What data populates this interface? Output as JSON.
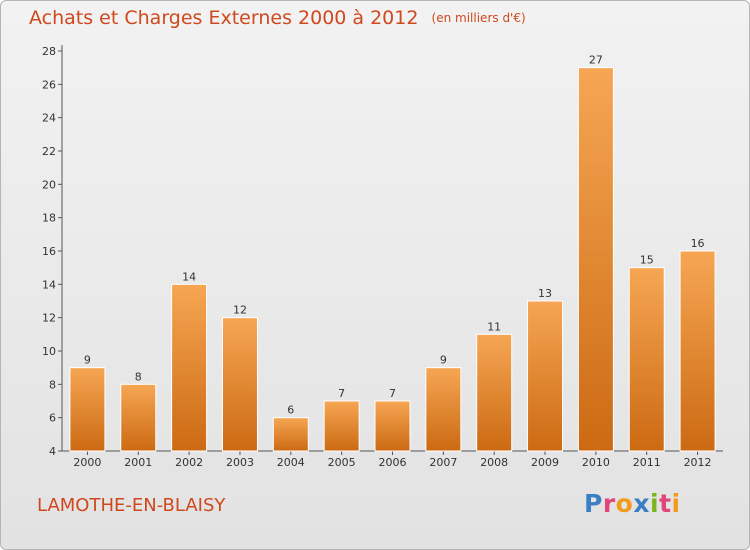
{
  "header": {
    "title": "Achats et Charges Externes 2000 à 2012",
    "unit_note": "(en milliers d'€)"
  },
  "footer": {
    "commune": "LAMOTHE-EN-BLAISY",
    "logo_text": "Proxiti",
    "logo_colors": [
      "#3a7fc4",
      "#e2457a",
      "#f29b1d",
      "#3a7fc4",
      "#7ab51d",
      "#e2457a",
      "#f29b1d"
    ]
  },
  "colors": {
    "bar_top": "#f6a653",
    "bar_bottom": "#cc6a13",
    "accent": "#d0481d",
    "axis": "#555555"
  },
  "chart_data": {
    "type": "bar",
    "title": "Achats et Charges Externes 2000 à 2012",
    "subtitle": "(en milliers d'€)",
    "xlabel": "",
    "ylabel": "",
    "categories": [
      "2000",
      "2001",
      "2002",
      "2003",
      "2004",
      "2005",
      "2006",
      "2007",
      "2008",
      "2009",
      "2010",
      "2011",
      "2012"
    ],
    "values": [
      9,
      8,
      14,
      12,
      6,
      7,
      7,
      9,
      11,
      13,
      27,
      15,
      16
    ],
    "ylim": [
      4,
      28
    ],
    "yticks": [
      4,
      6,
      8,
      10,
      12,
      14,
      16,
      18,
      20,
      22,
      24,
      26,
      28
    ],
    "grid": false,
    "legend": "none",
    "data_labels": true
  }
}
